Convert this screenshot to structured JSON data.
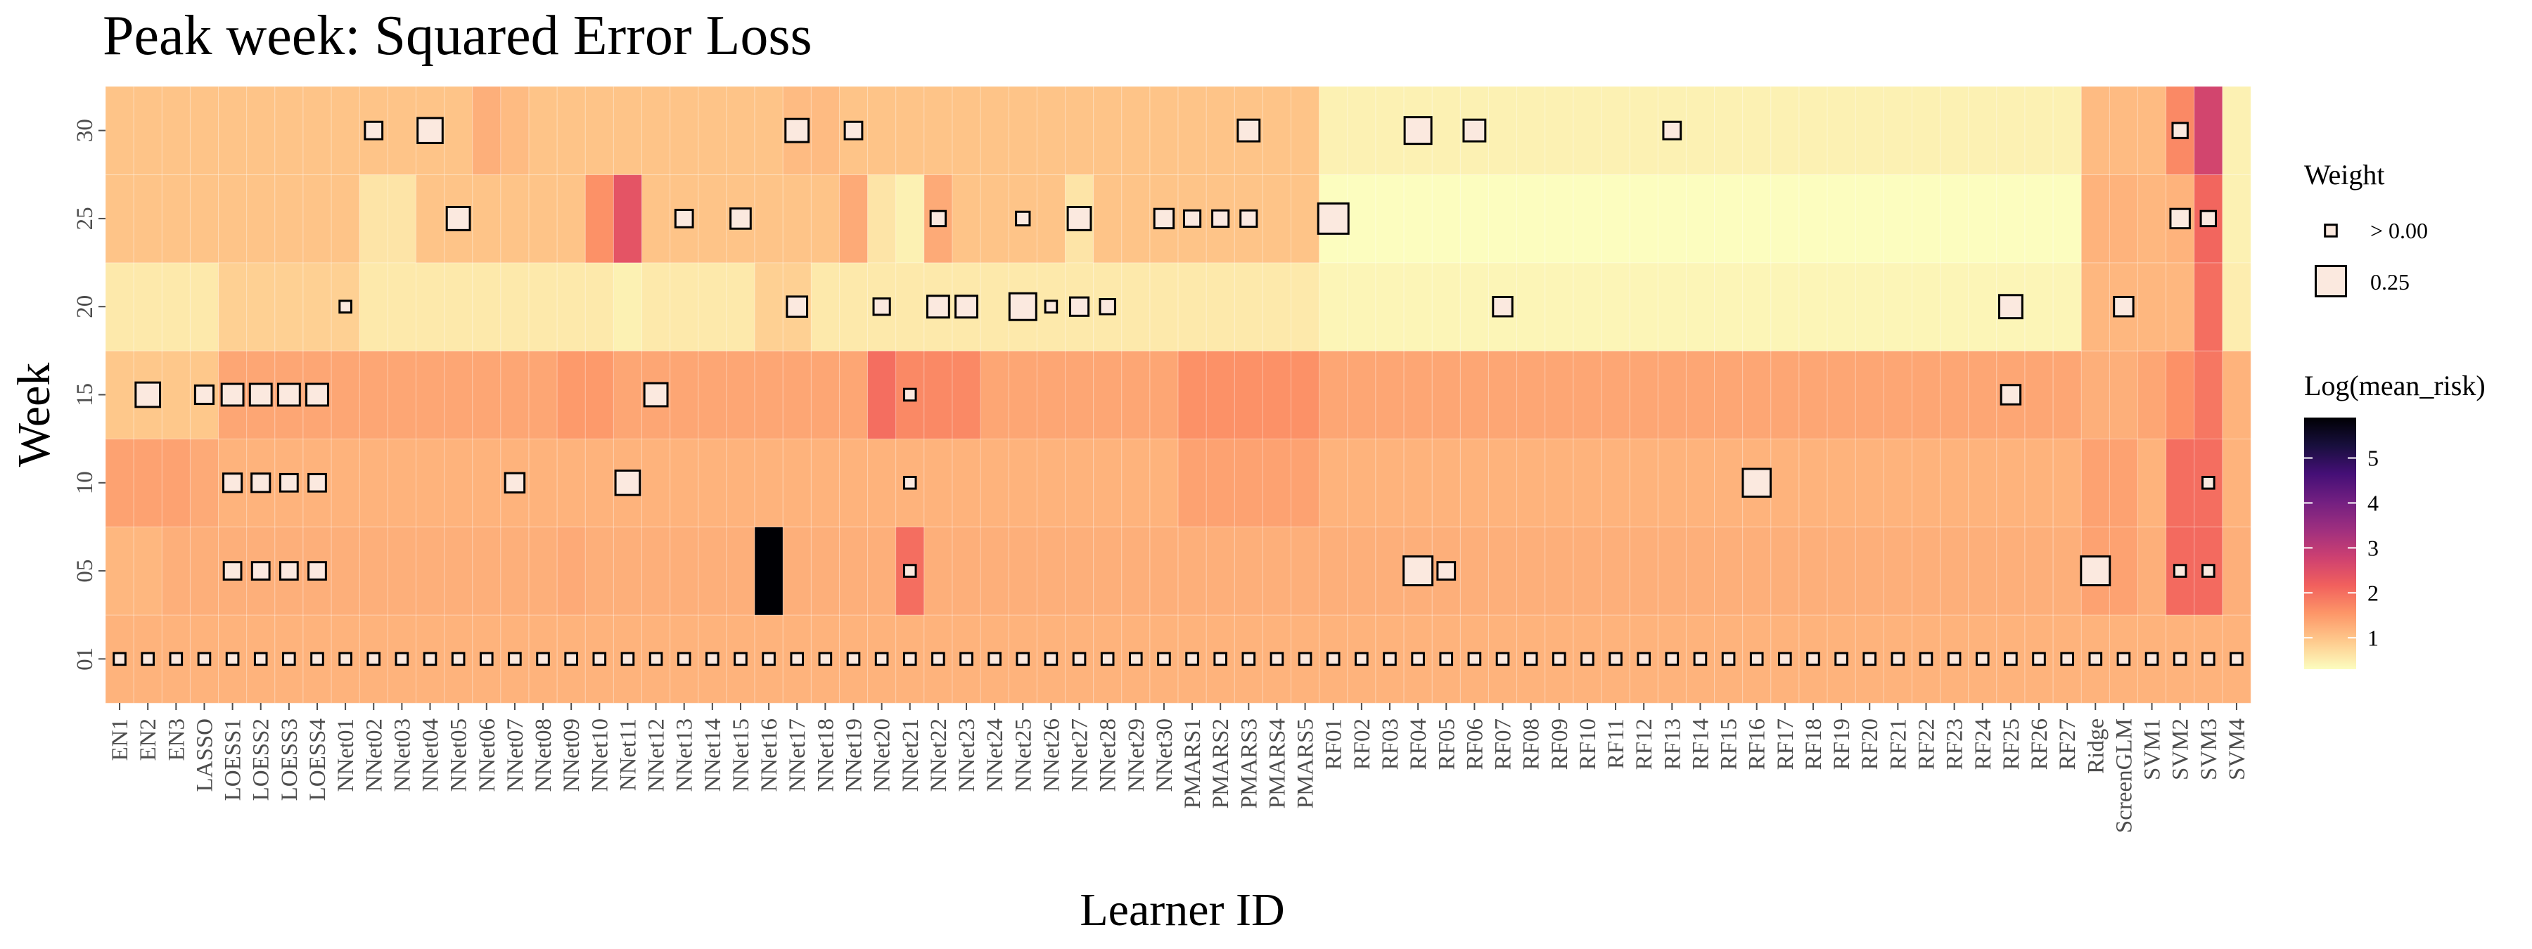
{
  "chart_data": {
    "type": "heatmap",
    "title": "Peak week: Squared Error Loss",
    "xlabel": "Learner ID",
    "ylabel": "Week",
    "learners": [
      "EN1",
      "EN2",
      "EN3",
      "LASSO",
      "LOESS1",
      "LOESS2",
      "LOESS3",
      "LOESS4",
      "NNet01",
      "NNet02",
      "NNet03",
      "NNet04",
      "NNet05",
      "NNet06",
      "NNet07",
      "NNet08",
      "NNet09",
      "NNet10",
      "NNet11",
      "NNet12",
      "NNet13",
      "NNet14",
      "NNet15",
      "NNet16",
      "NNet17",
      "NNet18",
      "NNet19",
      "NNet20",
      "NNet21",
      "NNet22",
      "NNet23",
      "NNet24",
      "NNet25",
      "NNet26",
      "NNet27",
      "NNet28",
      "NNet29",
      "NNet30",
      "PMARS1",
      "PMARS2",
      "PMARS3",
      "PMARS4",
      "PMARS5",
      "RF01",
      "RF02",
      "RF03",
      "RF04",
      "RF05",
      "RF06",
      "RF07",
      "RF08",
      "RF09",
      "RF10",
      "RF11",
      "RF12",
      "RF13",
      "RF14",
      "RF15",
      "RF16",
      "RF17",
      "RF18",
      "RF19",
      "RF20",
      "RF21",
      "RF22",
      "RF23",
      "RF24",
      "RF25",
      "RF26",
      "RF27",
      "Ridge",
      "ScreenGLM",
      "SVM1",
      "SVM2",
      "SVM3",
      "SVM4"
    ],
    "weeks": [
      "01",
      "05",
      "10",
      "15",
      "20",
      "25",
      "30"
    ],
    "legend": {
      "weight_title": "Weight",
      "weight_labels": [
        "> 0.00",
        "0.25"
      ],
      "weight_values": [
        0.01,
        0.25
      ],
      "color_title": "Log(mean_risk)",
      "color_breaks": [
        "1",
        "2",
        "3",
        "4",
        "5"
      ],
      "color_range": [
        0.3,
        5.9
      ],
      "palette": [
        "#fcfdbf",
        "#feca8d",
        "#fd9668",
        "#f1605d",
        "#cd4071",
        "#9e2f7f",
        "#721f81",
        "#440f76",
        "#180f3d",
        "#000004"
      ]
    },
    "risk": {
      "01": {
        "default": 1.2
      },
      "05": {
        "default": 1.25,
        "EN1": 1.15,
        "EN2": 1.15,
        "NNet16": 5.9,
        "NNet21": 2.0,
        "SVM2": 2.05,
        "SVM3": 2.05,
        "Ridge": 1.4,
        "ScreenGLM": 1.4,
        "NNet09": 1.3
      },
      "10": {
        "default": 1.2,
        "EN1": 1.4,
        "EN2": 1.4,
        "EN3": 1.4,
        "LASSO": 1.3,
        "PMARS1": 1.4,
        "PMARS2": 1.4,
        "PMARS3": 1.4,
        "PMARS4": 1.4,
        "PMARS5": 1.4,
        "Ridge": 1.4,
        "ScreenGLM": 1.4,
        "SVM2": 2.0,
        "SVM3": 2.0
      },
      "15": {
        "default": 1.35,
        "EN1": 0.95,
        "EN2": 0.95,
        "EN3": 0.95,
        "LASSO": 0.95,
        "NNet20": 2.0,
        "NNet21": 1.7,
        "NNet22": 1.7,
        "NNet23": 1.7,
        "PMARS1": 1.6,
        "PMARS2": 1.6,
        "PMARS3": 1.6,
        "PMARS4": 1.6,
        "PMARS5": 1.6,
        "NNet10": 1.5,
        "NNet09": 1.5,
        "SVM2": 1.6,
        "SVM3": 1.9,
        "SVM4": 1.2,
        "Ridge": 1.25,
        "ScreenGLM": 1.25
      },
      "20": {
        "default": 0.55,
        "LOESS1": 0.85,
        "LOESS2": 0.85,
        "LOESS3": 0.85,
        "LOESS4": 0.85,
        "NNet01": 0.85,
        "NNet11": 0.45,
        "NNet16": 0.85,
        "NNet17": 0.85,
        "RF01": 0.4,
        "RF02": 0.4,
        "RF03": 0.4,
        "RF04": 0.4,
        "RF05": 0.4,
        "RF06": 0.4,
        "RF07": 0.4,
        "RF08": 0.4,
        "RF09": 0.4,
        "RF10": 0.4,
        "RF11": 0.4,
        "RF12": 0.4,
        "RF13": 0.4,
        "RF14": 0.4,
        "RF15": 0.4,
        "RF16": 0.4,
        "RF17": 0.4,
        "RF18": 0.4,
        "RF19": 0.4,
        "RF20": 0.4,
        "RF21": 0.4,
        "RF22": 0.4,
        "RF23": 0.4,
        "RF24": 0.4,
        "RF25": 0.4,
        "RF26": 0.4,
        "RF27": 0.4,
        "Ridge": 1.15,
        "ScreenGLM": 1.15,
        "SVM1": 1.15,
        "SVM2": 1.15,
        "SVM3": 2.0,
        "SVM4": 0.5
      },
      "25": {
        "default": 1.0,
        "NNet02": 0.6,
        "NNet03": 0.6,
        "NNet10": 1.6,
        "NNet11": 2.4,
        "NNet19": 1.3,
        "NNet20": 0.6,
        "NNet21": 0.45,
        "NNet22": 1.3,
        "NNet27": 0.6,
        "RF01": 0.3,
        "RF02": 0.3,
        "RF03": 0.3,
        "RF04": 0.3,
        "RF05": 0.3,
        "RF06": 0.3,
        "RF07": 0.3,
        "RF08": 0.3,
        "RF09": 0.3,
        "RF10": 0.3,
        "RF11": 0.3,
        "RF12": 0.3,
        "RF13": 0.3,
        "RF14": 0.3,
        "RF15": 0.3,
        "RF16": 0.3,
        "RF17": 0.3,
        "RF18": 0.3,
        "RF19": 0.3,
        "RF20": 0.3,
        "RF21": 0.3,
        "RF22": 0.3,
        "RF23": 0.3,
        "RF24": 0.3,
        "RF25": 0.3,
        "RF26": 0.3,
        "RF27": 0.3,
        "Ridge": 1.2,
        "ScreenGLM": 1.2,
        "SVM1": 1.15,
        "SVM2": 1.2,
        "SVM3": 2.1,
        "SVM4": 0.45
      },
      "30": {
        "default": 1.0,
        "NNet06": 1.25,
        "NNet07": 1.1,
        "NNet17": 1.1,
        "NNet18": 1.1,
        "RF01": 0.45,
        "RF02": 0.45,
        "RF03": 0.45,
        "RF04": 0.45,
        "RF05": 0.45,
        "RF06": 0.45,
        "RF07": 0.45,
        "RF08": 0.45,
        "RF09": 0.45,
        "RF10": 0.45,
        "RF11": 0.45,
        "RF12": 0.45,
        "RF13": 0.45,
        "RF14": 0.45,
        "RF15": 0.45,
        "RF16": 0.45,
        "RF17": 0.45,
        "RF18": 0.45,
        "RF19": 0.45,
        "RF20": 0.45,
        "RF21": 0.45,
        "RF22": 0.45,
        "RF23": 0.45,
        "RF24": 0.45,
        "RF25": 0.45,
        "RF26": 0.45,
        "RF27": 0.45,
        "Ridge": 1.1,
        "ScreenGLM": 1.1,
        "SVM1": 1.1,
        "SVM2": 1.7,
        "SVM3": 2.7,
        "SVM4": 0.45
      }
    },
    "weights": [
      {
        "week": "30",
        "learner": "NNet02",
        "weight": 0.05
      },
      {
        "week": "30",
        "learner": "NNet04",
        "weight": 0.15
      },
      {
        "week": "30",
        "learner": "NNet17",
        "weight": 0.12
      },
      {
        "week": "30",
        "learner": "NNet19",
        "weight": 0.05
      },
      {
        "week": "30",
        "learner": "PMARS3",
        "weight": 0.1
      },
      {
        "week": "30",
        "learner": "RF04",
        "weight": 0.18
      },
      {
        "week": "30",
        "learner": "RF06",
        "weight": 0.1
      },
      {
        "week": "30",
        "learner": "RF13",
        "weight": 0.05
      },
      {
        "week": "30",
        "learner": "SVM2",
        "weight": 0.03
      },
      {
        "week": "25",
        "learner": "NNet05",
        "weight": 0.12
      },
      {
        "week": "25",
        "learner": "NNet13",
        "weight": 0.05
      },
      {
        "week": "25",
        "learner": "NNet15",
        "weight": 0.08
      },
      {
        "week": "25",
        "learner": "NNet22",
        "weight": 0.03
      },
      {
        "week": "25",
        "learner": "NNet25",
        "weight": 0.02
      },
      {
        "week": "25",
        "learner": "NNet27",
        "weight": 0.12
      },
      {
        "week": "25",
        "learner": "NNet30",
        "weight": 0.07
      },
      {
        "week": "25",
        "learner": "PMARS1",
        "weight": 0.04
      },
      {
        "week": "25",
        "learner": "PMARS2",
        "weight": 0.04
      },
      {
        "week": "25",
        "learner": "PMARS3",
        "weight": 0.04
      },
      {
        "week": "25",
        "learner": "RF01",
        "weight": 0.25
      },
      {
        "week": "25",
        "learner": "SVM2",
        "weight": 0.07
      },
      {
        "week": "25",
        "learner": "SVM3",
        "weight": 0.03
      },
      {
        "week": "20",
        "learner": "NNet01",
        "weight": 0.01
      },
      {
        "week": "20",
        "learner": "NNet17",
        "weight": 0.08
      },
      {
        "week": "20",
        "learner": "NNet20",
        "weight": 0.04
      },
      {
        "week": "20",
        "learner": "NNet22",
        "weight": 0.1
      },
      {
        "week": "20",
        "learner": "NNet23",
        "weight": 0.1
      },
      {
        "week": "20",
        "learner": "NNet25",
        "weight": 0.18
      },
      {
        "week": "20",
        "learner": "NNet26",
        "weight": 0.01
      },
      {
        "week": "20",
        "learner": "NNet27",
        "weight": 0.06
      },
      {
        "week": "20",
        "learner": "NNet28",
        "weight": 0.03
      },
      {
        "week": "20",
        "learner": "RF07",
        "weight": 0.07
      },
      {
        "week": "20",
        "learner": "RF25",
        "weight": 0.12
      },
      {
        "week": "20",
        "learner": "ScreenGLM",
        "weight": 0.07
      },
      {
        "week": "15",
        "learner": "EN2",
        "weight": 0.14
      },
      {
        "week": "15",
        "learner": "LASSO",
        "weight": 0.06
      },
      {
        "week": "15",
        "learner": "LOESS1",
        "weight": 0.1
      },
      {
        "week": "15",
        "learner": "LOESS2",
        "weight": 0.1
      },
      {
        "week": "15",
        "learner": "LOESS3",
        "weight": 0.1
      },
      {
        "week": "15",
        "learner": "LOESS4",
        "weight": 0.1
      },
      {
        "week": "15",
        "learner": "NNet12",
        "weight": 0.12
      },
      {
        "week": "15",
        "learner": "NNet21",
        "weight": 0.01
      },
      {
        "week": "15",
        "learner": "RF25",
        "weight": 0.07
      },
      {
        "week": "10",
        "learner": "LOESS1",
        "weight": 0.06
      },
      {
        "week": "10",
        "learner": "LOESS2",
        "weight": 0.06
      },
      {
        "week": "10",
        "learner": "LOESS3",
        "weight": 0.05
      },
      {
        "week": "10",
        "learner": "LOESS4",
        "weight": 0.05
      },
      {
        "week": "10",
        "learner": "NNet07",
        "weight": 0.07
      },
      {
        "week": "10",
        "learner": "NNet11",
        "weight": 0.14
      },
      {
        "week": "10",
        "learner": "NNet21",
        "weight": 0.01
      },
      {
        "week": "10",
        "learner": "RF16",
        "weight": 0.2
      },
      {
        "week": "10",
        "learner": "SVM3",
        "weight": 0.01
      },
      {
        "week": "05",
        "learner": "LOESS1",
        "weight": 0.05
      },
      {
        "week": "05",
        "learner": "LOESS2",
        "weight": 0.05
      },
      {
        "week": "05",
        "learner": "LOESS3",
        "weight": 0.05
      },
      {
        "week": "05",
        "learner": "LOESS4",
        "weight": 0.05
      },
      {
        "week": "05",
        "learner": "NNet21",
        "weight": 0.01
      },
      {
        "week": "05",
        "learner": "RF04",
        "weight": 0.22
      },
      {
        "week": "05",
        "learner": "RF05",
        "weight": 0.05
      },
      {
        "week": "05",
        "learner": "Ridge",
        "weight": 0.22
      },
      {
        "week": "05",
        "learner": "SVM2",
        "weight": 0.01
      },
      {
        "week": "05",
        "learner": "SVM3",
        "weight": 0.01
      }
    ],
    "uniform_weight_week": "01",
    "uniform_weight_value": 0.01
  }
}
